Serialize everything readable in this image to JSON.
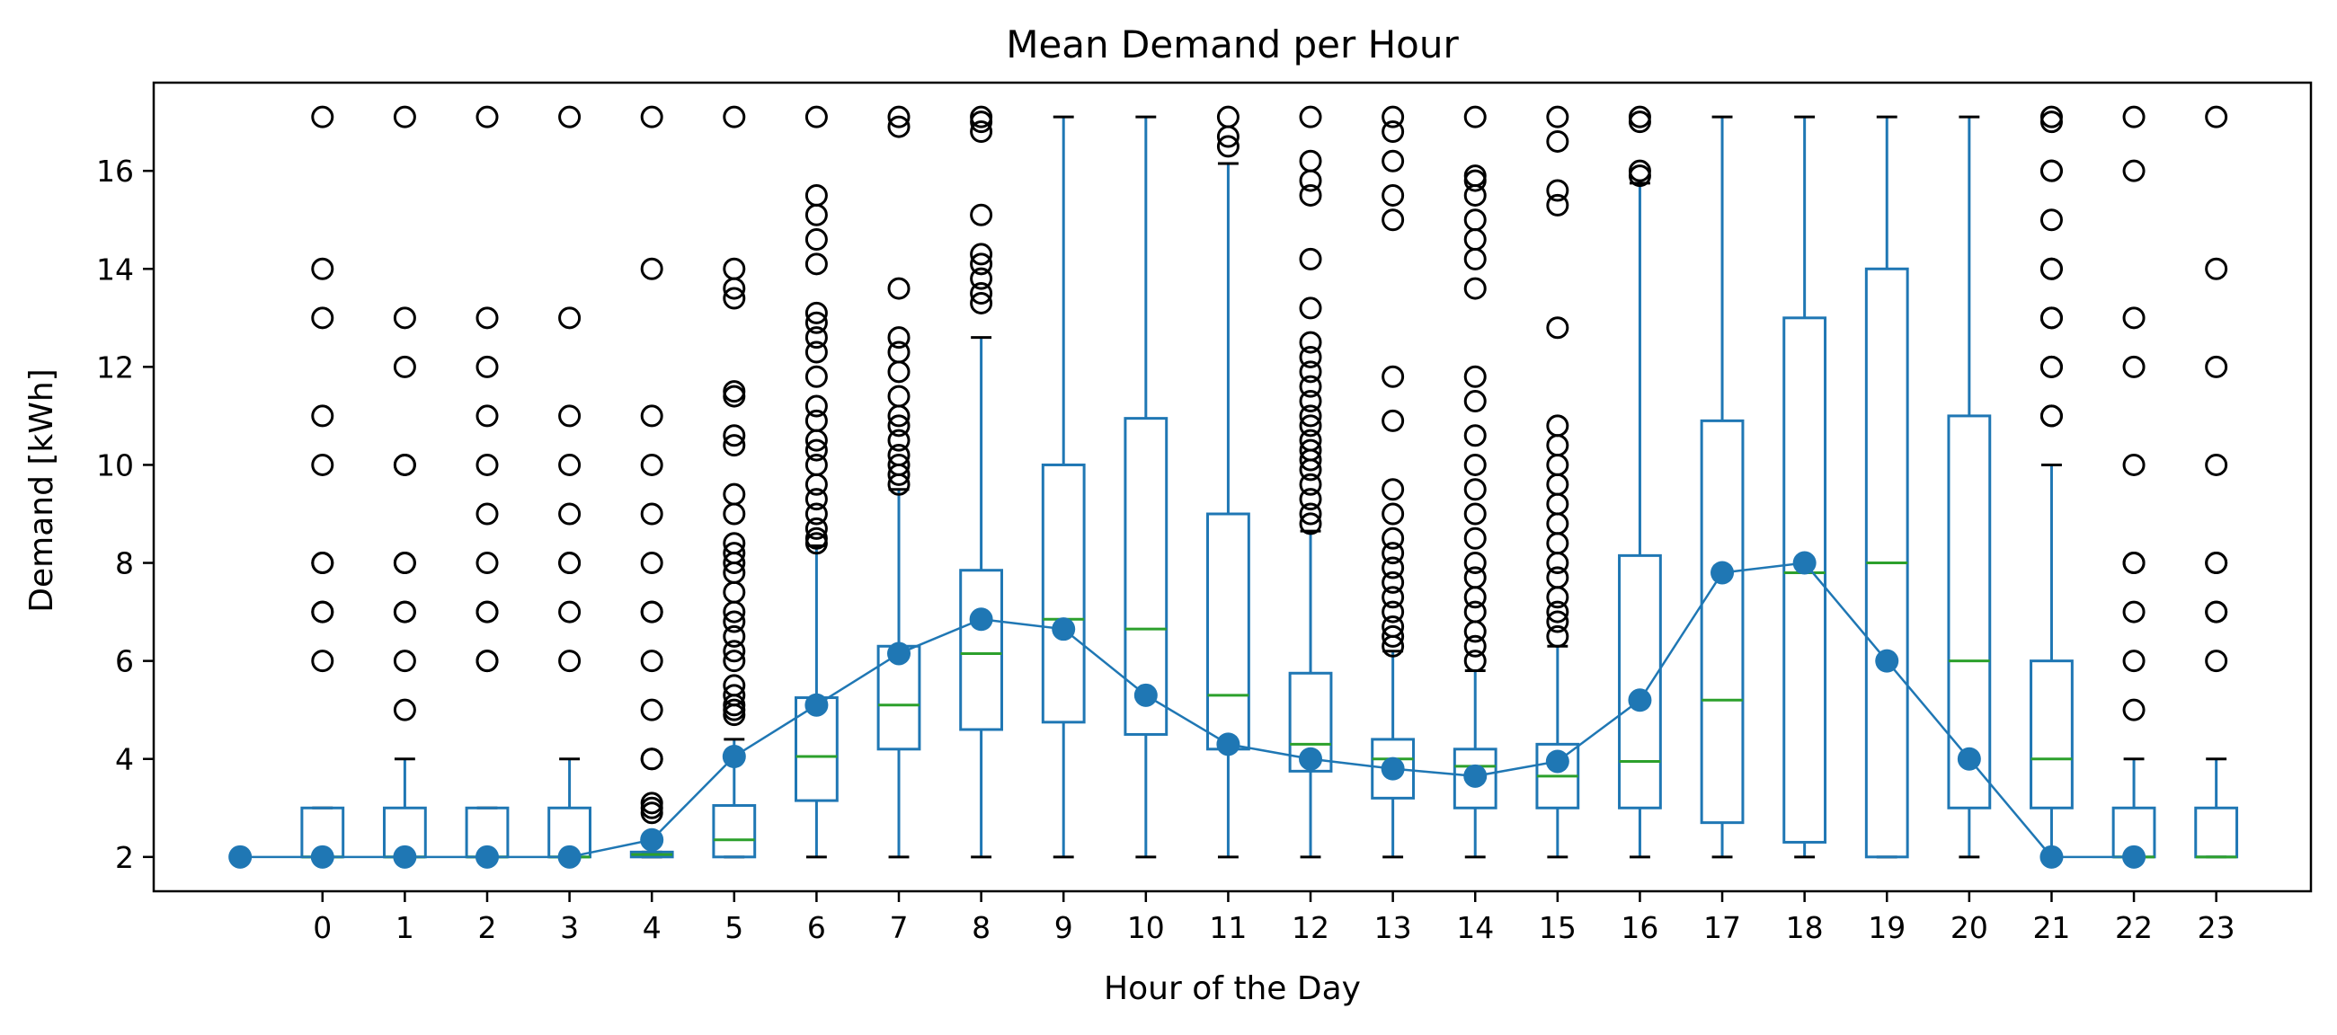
{
  "chart_data": {
    "type": "box",
    "title": "Mean Demand per Hour",
    "xlabel": "Hour of the Day",
    "ylabel": "Demand [kWh]",
    "x_tick_labels": [
      "0",
      "1",
      "2",
      "3",
      "4",
      "5",
      "6",
      "7",
      "8",
      "9",
      "10",
      "11",
      "12",
      "13",
      "14",
      "15",
      "16",
      "17",
      "18",
      "19",
      "20",
      "21",
      "22",
      "23"
    ],
    "y_ticks": [
      2,
      4,
      6,
      8,
      10,
      12,
      14,
      16
    ],
    "y_tick_labels": [
      "2",
      "4",
      "6",
      "8",
      "10",
      "12",
      "14",
      "16"
    ],
    "ylim": [
      1.3,
      17.8
    ],
    "grid": false,
    "colors": {
      "box": "#1f77b4",
      "median": "#2ca02c",
      "mean": "#1f77b4",
      "flier": "#000000"
    },
    "boxes": [
      {
        "hour": 0,
        "whislo": 2,
        "q1": 2,
        "med": 2,
        "q3": 3,
        "whishi": 3,
        "fliers": [
          6,
          7,
          7,
          8,
          8,
          10,
          11,
          13,
          14,
          17.1
        ]
      },
      {
        "hour": 1,
        "whislo": 2,
        "q1": 2,
        "med": 2,
        "q3": 3,
        "whishi": 4,
        "fliers": [
          5,
          6,
          7,
          7,
          8,
          8,
          10,
          10,
          12,
          13,
          17.1
        ]
      },
      {
        "hour": 2,
        "whislo": 2,
        "q1": 2,
        "med": 2,
        "q3": 3,
        "whishi": 3,
        "fliers": [
          6,
          6,
          7,
          7,
          8,
          9,
          10,
          11,
          12,
          13,
          17.1
        ]
      },
      {
        "hour": 3,
        "whislo": 2,
        "q1": 2,
        "med": 2,
        "q3": 3,
        "whishi": 4,
        "fliers": [
          6,
          7,
          8,
          8,
          9,
          10,
          11,
          13,
          17.1
        ]
      },
      {
        "hour": 4,
        "whislo": 2,
        "q1": 2,
        "med": 2.05,
        "q3": 2.1,
        "whishi": 2.1,
        "fliers": [
          2.9,
          3,
          3.1,
          4,
          4,
          5,
          6,
          7,
          7,
          8,
          9,
          10,
          11,
          14,
          17.1
        ]
      },
      {
        "hour": 5,
        "whislo": 2,
        "q1": 2,
        "med": 2.35,
        "q3": 3.05,
        "whishi": 4.4,
        "fliers": [
          4.9,
          5,
          5.1,
          5.3,
          5.5,
          6,
          6.2,
          6.5,
          6.8,
          7,
          7.4,
          7.8,
          8,
          8.2,
          8.4,
          9,
          9.4,
          10.4,
          10.6,
          11.4,
          11.5,
          13.4,
          13.6,
          14,
          17.1
        ]
      },
      {
        "hour": 6,
        "whislo": 2,
        "q1": 3.15,
        "med": 4.05,
        "q3": 5.25,
        "whishi": 8.35,
        "fliers": [
          8.4,
          8.5,
          8.7,
          9,
          9.3,
          9.6,
          10,
          10.3,
          10.5,
          10.9,
          11.2,
          11.8,
          12.3,
          12.6,
          12.9,
          13.1,
          14.1,
          14.6,
          15.1,
          15.5,
          17.1
        ]
      },
      {
        "hour": 7,
        "whislo": 2,
        "q1": 4.2,
        "med": 5.1,
        "q3": 6.3,
        "whishi": 9.5,
        "fliers": [
          9.6,
          9.8,
          10,
          10.2,
          10.5,
          10.8,
          11,
          11.4,
          11.9,
          12.3,
          12.6,
          13.6,
          16.9,
          17.1
        ]
      },
      {
        "hour": 8,
        "whislo": 2,
        "q1": 4.6,
        "med": 6.15,
        "q3": 7.85,
        "whishi": 12.6,
        "fliers": [
          13.3,
          13.5,
          13.8,
          14.1,
          14.3,
          15.1,
          16.8,
          17,
          17.1
        ]
      },
      {
        "hour": 9,
        "whislo": 2,
        "q1": 4.75,
        "med": 6.85,
        "q3": 10,
        "whishi": 17.1,
        "fliers": []
      },
      {
        "hour": 10,
        "whislo": 2,
        "q1": 4.5,
        "med": 6.65,
        "q3": 10.95,
        "whishi": 17.1,
        "fliers": []
      },
      {
        "hour": 11,
        "whislo": 2,
        "q1": 4.2,
        "med": 5.3,
        "q3": 9,
        "whishi": 16.15,
        "fliers": [
          16.5,
          16.7,
          17.1
        ]
      },
      {
        "hour": 12,
        "whislo": 2,
        "q1": 3.75,
        "med": 4.3,
        "q3": 5.75,
        "whishi": 8.65,
        "fliers": [
          8.8,
          9,
          9.3,
          9.6,
          9.9,
          10.1,
          10.3,
          10.5,
          10.8,
          11,
          11.3,
          11.6,
          11.9,
          12.2,
          12.5,
          13.2,
          14.2,
          15.5,
          15.8,
          16.2,
          17.1
        ]
      },
      {
        "hour": 13,
        "whislo": 2,
        "q1": 3.2,
        "med": 4,
        "q3": 4.4,
        "whishi": 6.2,
        "fliers": [
          6.3,
          6.5,
          6.7,
          7,
          7.3,
          7.6,
          7.9,
          8.2,
          8.5,
          9,
          9.5,
          10.9,
          11.8,
          15,
          15.5,
          16.2,
          16.8,
          17.1
        ]
      },
      {
        "hour": 14,
        "whislo": 2,
        "q1": 3,
        "med": 3.85,
        "q3": 4.2,
        "whishi": 5.8,
        "fliers": [
          6,
          6.3,
          6.6,
          7,
          7.3,
          7.7,
          8,
          8.5,
          9,
          9.5,
          10,
          10.6,
          11.3,
          11.8,
          13.6,
          14.2,
          14.6,
          15,
          15.5,
          15.8,
          15.9,
          17.1
        ]
      },
      {
        "hour": 15,
        "whislo": 2,
        "q1": 3,
        "med": 3.65,
        "q3": 4.3,
        "whishi": 6.3,
        "fliers": [
          6.5,
          6.8,
          7,
          7.3,
          7.7,
          8,
          8.4,
          8.8,
          9.2,
          9.6,
          10,
          10.4,
          10.8,
          12.8,
          15.3,
          15.6,
          16.6,
          17.1
        ]
      },
      {
        "hour": 16,
        "whislo": 2,
        "q1": 3,
        "med": 3.95,
        "q3": 8.15,
        "whishi": 15.75,
        "fliers": [
          15.9,
          16,
          17,
          17.1
        ]
      },
      {
        "hour": 17,
        "whislo": 2,
        "q1": 2.7,
        "med": 5.2,
        "q3": 10.9,
        "whishi": 17.1,
        "fliers": []
      },
      {
        "hour": 18,
        "whislo": 2,
        "q1": 2.3,
        "med": 7.8,
        "q3": 13,
        "whishi": 17.1,
        "fliers": []
      },
      {
        "hour": 19,
        "whislo": 2,
        "q1": 2,
        "med": 8,
        "q3": 14,
        "whishi": 17.1,
        "fliers": []
      },
      {
        "hour": 20,
        "whislo": 2,
        "q1": 3,
        "med": 6,
        "q3": 11,
        "whishi": 17.1,
        "fliers": []
      },
      {
        "hour": 21,
        "whislo": 2,
        "q1": 3,
        "med": 4,
        "q3": 6,
        "whishi": 10,
        "fliers": [
          11,
          11,
          12,
          12,
          13,
          13,
          14,
          14,
          15,
          16,
          16,
          17,
          17.1
        ]
      },
      {
        "hour": 22,
        "whislo": 2,
        "q1": 2,
        "med": 2,
        "q3": 3,
        "whishi": 4,
        "fliers": [
          5,
          6,
          7,
          8,
          8,
          10,
          12,
          13,
          16,
          17.1
        ]
      },
      {
        "hour": 23,
        "whislo": 2,
        "q1": 2,
        "med": 2,
        "q3": 3,
        "whishi": 4,
        "fliers": [
          6,
          7,
          7,
          8,
          8,
          10,
          12,
          14,
          17.1
        ]
      }
    ],
    "mean_series": {
      "type": "line",
      "x": [
        -1,
        0,
        1,
        2,
        3,
        4,
        5,
        6,
        7,
        8,
        9,
        10,
        11,
        12,
        13,
        14,
        15,
        16,
        17,
        18,
        19,
        20,
        21,
        22
      ],
      "y": [
        2,
        2,
        2,
        2,
        2,
        2.35,
        4.05,
        5.1,
        6.15,
        6.85,
        6.65,
        5.3,
        4.3,
        4,
        3.8,
        3.65,
        3.95,
        5.2,
        7.8,
        8,
        6,
        4,
        2,
        2
      ]
    }
  }
}
